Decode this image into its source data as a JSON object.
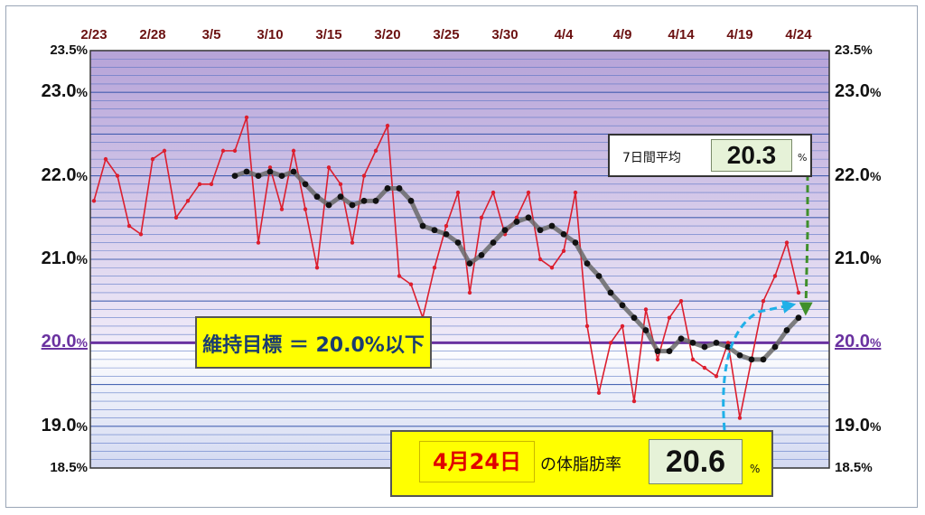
{
  "chart_data": {
    "type": "line",
    "x_dates": [
      "2/23",
      "2/24",
      "2/25",
      "2/26",
      "2/27",
      "2/28",
      "3/1",
      "3/2",
      "3/3",
      "3/4",
      "3/5",
      "3/6",
      "3/7",
      "3/8",
      "3/9",
      "3/10",
      "3/11",
      "3/12",
      "3/13",
      "3/14",
      "3/15",
      "3/16",
      "3/17",
      "3/18",
      "3/19",
      "3/20",
      "3/21",
      "3/22",
      "3/23",
      "3/24",
      "3/25",
      "3/26",
      "3/27",
      "3/28",
      "3/29",
      "3/30",
      "3/31",
      "4/1",
      "4/2",
      "4/3",
      "4/4",
      "4/5",
      "4/6",
      "4/7",
      "4/8",
      "4/9",
      "4/10",
      "4/11",
      "4/12",
      "4/13",
      "4/14",
      "4/15",
      "4/16",
      "4/17",
      "4/18",
      "4/19",
      "4/20",
      "4/21",
      "4/22",
      "4/23",
      "4/24"
    ],
    "xtick_labels": [
      "2/23",
      "2/28",
      "3/5",
      "3/10",
      "3/15",
      "3/20",
      "3/25",
      "3/30",
      "4/4",
      "4/9",
      "4/14",
      "4/19",
      "4/24"
    ],
    "yticks": [
      {
        "value": 23.5,
        "label": "23.5",
        "unit": "%"
      },
      {
        "value": 23.0,
        "label": "23.0",
        "unit": "%"
      },
      {
        "value": 22.0,
        "label": "22.0",
        "unit": "%"
      },
      {
        "value": 21.0,
        "label": "21.0",
        "unit": "%"
      },
      {
        "value": 20.0,
        "label": "20.0",
        "unit": "%"
      },
      {
        "value": 19.0,
        "label": "19.0",
        "unit": "%"
      },
      {
        "value": 18.5,
        "label": "18.5",
        "unit": "%"
      }
    ],
    "ylim": [
      18.5,
      23.5
    ],
    "target_line": 20.0,
    "series": [
      {
        "values": [
          21.7,
          22.2,
          22.0,
          21.4,
          21.3,
          22.2,
          22.3,
          21.5,
          21.7,
          21.9,
          21.9,
          22.3,
          22.3,
          22.7,
          21.2,
          22.1,
          21.6,
          22.3,
          21.6,
          20.9,
          22.1,
          21.9,
          21.2,
          22.0,
          22.3,
          22.6,
          20.8,
          20.7,
          20.3,
          20.9,
          21.4,
          21.8,
          20.6,
          21.5,
          21.8,
          21.3,
          21.5,
          21.8,
          21.0,
          20.9,
          21.1,
          21.8,
          20.2,
          19.4,
          20.0,
          20.2,
          19.3,
          20.4,
          19.8,
          20.3,
          20.5,
          19.8,
          19.7,
          19.6,
          20.0,
          19.1,
          19.8,
          20.5,
          20.8,
          21.2,
          20.6
        ]
      },
      {
        "values": [
          null,
          null,
          null,
          null,
          null,
          null,
          null,
          null,
          null,
          null,
          null,
          null,
          22.0,
          22.05,
          22.0,
          22.05,
          22.0,
          22.05,
          21.9,
          21.75,
          21.65,
          21.75,
          21.65,
          21.7,
          21.7,
          21.85,
          21.85,
          21.7,
          21.4,
          21.35,
          21.3,
          21.2,
          20.95,
          21.05,
          21.2,
          21.35,
          21.45,
          21.5,
          21.35,
          21.4,
          21.3,
          21.2,
          20.95,
          20.8,
          20.6,
          20.45,
          20.3,
          20.15,
          19.9,
          19.9,
          20.05,
          20.0,
          19.95,
          20.0,
          19.95,
          19.85,
          19.8,
          19.8,
          19.95,
          20.15,
          20.3
        ]
      }
    ]
  },
  "colors": {
    "measured": "#dc1e2e",
    "average": "#3a3a3a",
    "target": "#6a32a0",
    "arrow_avg": "#3f8f2b",
    "arrow_today": "#1fb0e8"
  },
  "avg_panel": {
    "label": "7日間平均",
    "value": "20.3",
    "unit": "%"
  },
  "goal_panel": {
    "text": "維持目標 ＝ 20.0%以下"
  },
  "today_panel": {
    "date": "4月24日",
    "label": "の体脂肪率",
    "value": "20.6",
    "unit": "%"
  }
}
